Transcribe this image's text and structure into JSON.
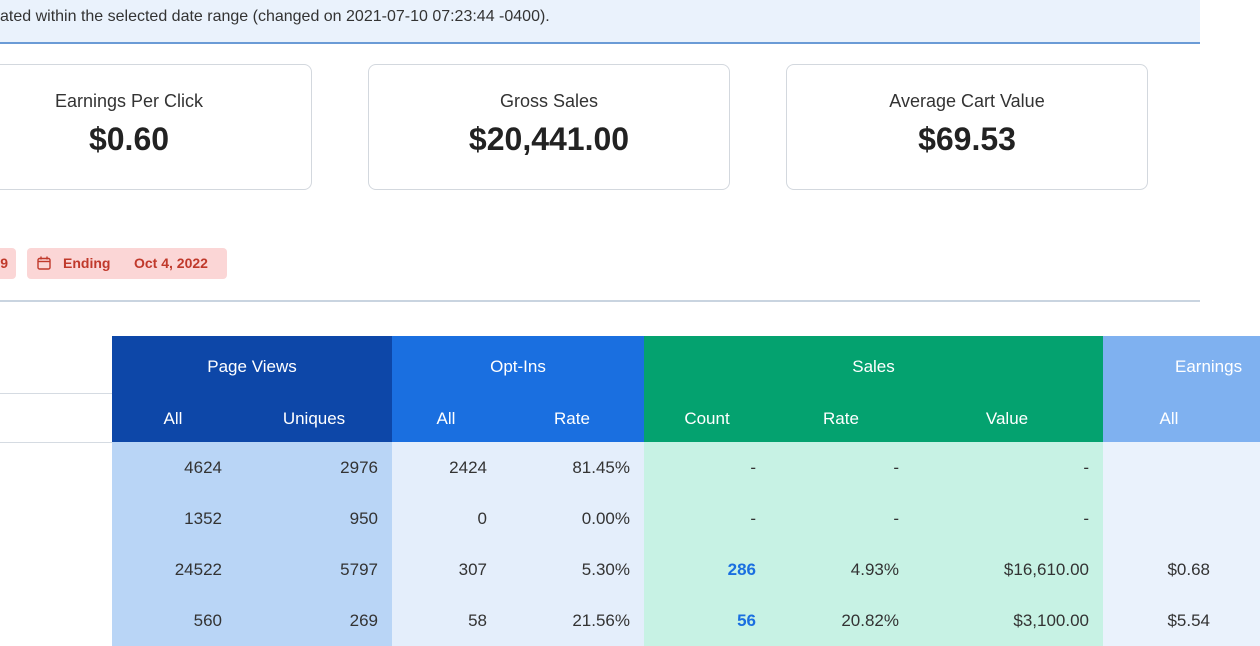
{
  "banner": {
    "text": "ated within the selected date range (changed on 2021-07-10 07:23:44 -0400)."
  },
  "cards": [
    {
      "label": "Earnings Per Click",
      "value": "$0.60"
    },
    {
      "label": "Gross Sales",
      "value": "$20,441.00"
    },
    {
      "label": "Average Cart Value",
      "value": "$69.53"
    }
  ],
  "tags": [
    {
      "value": "9"
    },
    {
      "label": "Ending",
      "value": "Oct 4, 2022"
    }
  ],
  "table": {
    "groups": [
      "Page Views",
      "Opt-Ins",
      "Sales",
      "Earnings"
    ],
    "columns": [
      "All",
      "Uniques",
      "All",
      "Rate",
      "Count",
      "Rate",
      "Value",
      "All"
    ],
    "rows": [
      [
        "4624",
        "2976",
        "2424",
        "81.45%",
        "-",
        "-",
        "-",
        ""
      ],
      [
        "1352",
        "950",
        "0",
        "0.00%",
        "-",
        "-",
        "-",
        ""
      ],
      [
        "24522",
        "5797",
        "307",
        "5.30%",
        "286",
        "4.93%",
        "$16,610.00",
        "$0.68"
      ],
      [
        "560",
        "269",
        "58",
        "21.56%",
        "56",
        "20.82%",
        "$3,100.00",
        "$5.54"
      ]
    ]
  }
}
